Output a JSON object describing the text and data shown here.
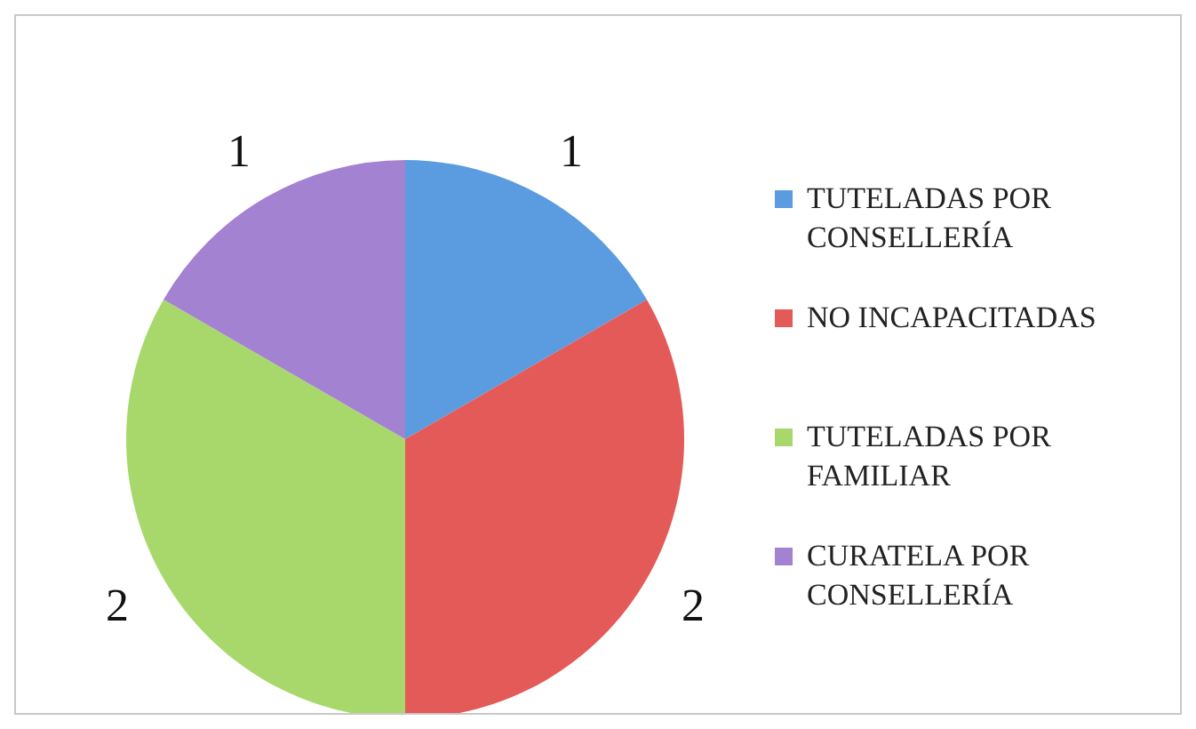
{
  "chart_data": {
    "type": "pie",
    "categories": [
      "TUTELADAS POR CONSELLERÍA",
      "NO INCAPACITADAS",
      "TUTELADAS POR FAMILIAR",
      "CURATELA POR CONSELLERÍA"
    ],
    "values": [
      1,
      2,
      2,
      1
    ],
    "colors": [
      "#5b9be0",
      "#e45a58",
      "#a8d86c",
      "#a382d2"
    ],
    "data_labels": true,
    "legend": "right"
  }
}
